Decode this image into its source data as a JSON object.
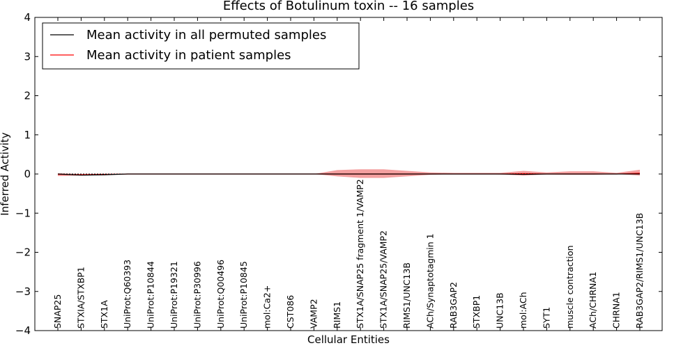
{
  "chart_data": {
    "type": "line",
    "title": "Effects of Botulinum toxin -- 16 samples",
    "xlabel": "Cellular Entities",
    "ylabel": "Inferred Activity",
    "ylim": [
      -4,
      4
    ],
    "yticks": [
      "−4",
      "−3",
      "−2",
      "−1",
      "0",
      "1",
      "2",
      "3",
      "4"
    ],
    "ytick_values": [
      -4,
      -3,
      -2,
      -1,
      0,
      1,
      2,
      3,
      4
    ],
    "categories": [
      "SNAP25",
      "STXIA/STXBP1",
      "STX1A",
      "UniProt:Q60393",
      "UniProt:P10844",
      "UniProt:P19321",
      "UniProt:P30996",
      "UniProt:Q00496",
      "UniProt:P10845",
      "mol:Ca2+",
      "CST086",
      "VAMP2",
      "RIMS1",
      "STX1A/SNAP25 fragment 1/VAMP2",
      "STX1A/SNAP25/VAMP2",
      "RIMS1/UNC13B",
      "ACh/Synaptotagmin 1",
      "RAB3GAP2",
      "STXBP1",
      "UNC13B",
      "mol:ACh",
      "SYT1",
      "muscle contraction",
      "ACh/CHRNA1",
      "CHRNA1",
      "RAB3GAP2/RIMS1/UNC13B"
    ],
    "legend_position": "top-left",
    "series": [
      {
        "name": "Mean activity in all permuted samples",
        "color": "#000000",
        "values": [
          0.0,
          -0.03,
          -0.02,
          0.0,
          0.0,
          0.0,
          0.0,
          0.0,
          0.0,
          0.0,
          0.0,
          0.0,
          0.0,
          0.0,
          0.0,
          0.0,
          0.0,
          0.0,
          0.0,
          0.0,
          -0.01,
          0.0,
          0.0,
          0.0,
          0.0,
          0.0
        ]
      },
      {
        "name": "Mean activity in patient samples",
        "color": "#ff0000",
        "values": [
          -0.01,
          -0.02,
          -0.01,
          0.0,
          0.0,
          0.0,
          0.0,
          0.0,
          0.0,
          0.0,
          0.0,
          0.0,
          0.0,
          0.0,
          0.0,
          0.0,
          0.0,
          0.0,
          0.0,
          0.0,
          0.01,
          0.0,
          0.0,
          0.0,
          0.0,
          0.02
        ],
        "band_upper": [
          0.02,
          0.0,
          0.01,
          0.0,
          0.0,
          0.0,
          0.0,
          0.0,
          0.0,
          0.0,
          0.0,
          0.0,
          0.1,
          0.12,
          0.12,
          0.08,
          0.04,
          0.03,
          0.03,
          0.03,
          0.08,
          0.04,
          0.07,
          0.07,
          0.03,
          0.11
        ],
        "band_lower": [
          -0.05,
          -0.04,
          -0.03,
          0.0,
          0.0,
          0.0,
          0.0,
          0.0,
          0.0,
          0.0,
          0.0,
          0.0,
          -0.06,
          -0.1,
          -0.1,
          -0.06,
          -0.02,
          0.0,
          0.0,
          -0.01,
          -0.04,
          -0.01,
          -0.02,
          -0.02,
          0.0,
          -0.04
        ],
        "band_color": "#f08080"
      }
    ]
  }
}
